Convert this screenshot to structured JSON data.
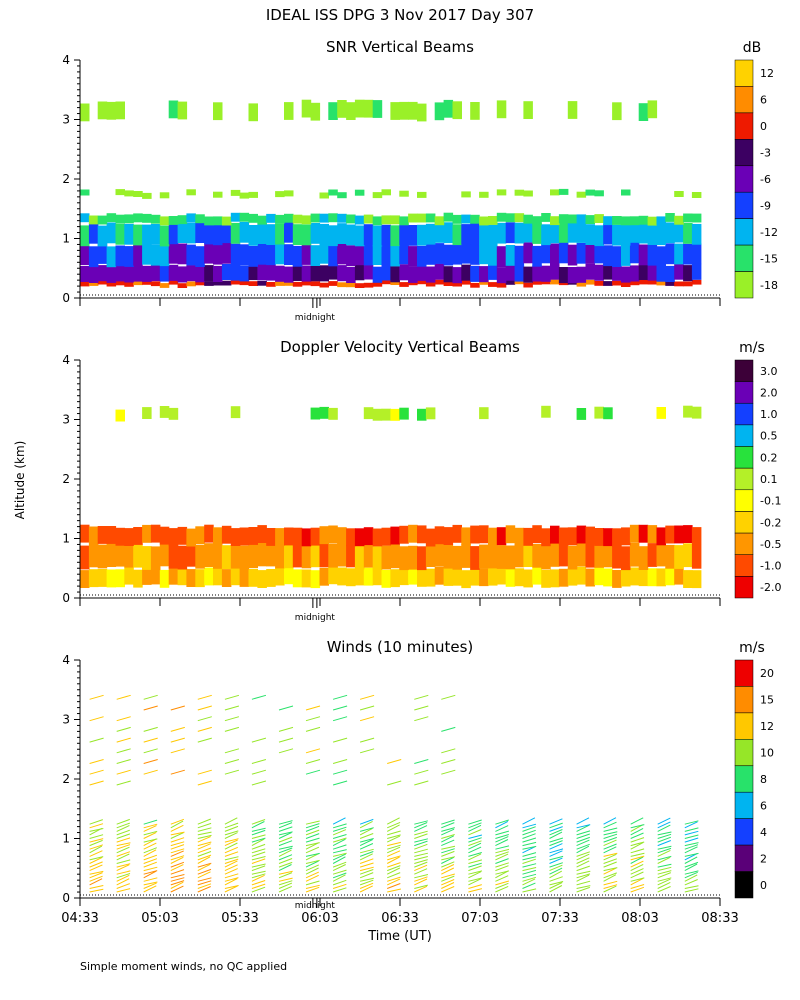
{
  "header": {
    "title": "IDEAL ISS DPG    3 Nov 2017 Day 307",
    "footnote": "Simple moment winds, no QC applied",
    "ylabel": "Altitude (km)"
  },
  "chart_data": [
    {
      "type": "heatmap",
      "title": "SNR Vertical Beams",
      "yticks": [
        "0",
        "1",
        "2",
        "3",
        "4"
      ],
      "ylim": [
        0,
        4
      ],
      "marker": "midnight",
      "colorbar": {
        "unit": "dB",
        "labels": [
          "12",
          "6",
          "0",
          "-3",
          "-6",
          "-9",
          "-12",
          "-15",
          "-18"
        ],
        "colors": [
          "#ffd200",
          "#ff8c00",
          "#ee1a00",
          "#3c0062",
          "#6a00b6",
          "#1440ff",
          "#00b4f0",
          "#28e26a",
          "#9af028"
        ]
      },
      "bands": [
        {
          "lo": 0.2,
          "hi": 0.28,
          "value": 0
        },
        {
          "lo": 0.28,
          "hi": 0.55,
          "value": -6
        },
        {
          "lo": 0.55,
          "hi": 0.9,
          "value": -9
        },
        {
          "lo": 0.9,
          "hi": 1.25,
          "value": -12
        },
        {
          "lo": 1.25,
          "hi": 1.4,
          "value": -15
        },
        {
          "lo": 1.7,
          "hi": 1.8,
          "value": -18
        },
        {
          "lo": 3.0,
          "hi": 3.3,
          "value": -18
        }
      ]
    },
    {
      "type": "heatmap",
      "title": "Doppler Velocity Vertical Beams",
      "yticks": [
        "0",
        "1",
        "2",
        "3",
        "4"
      ],
      "ylim": [
        0,
        4
      ],
      "marker": "midnight",
      "colorbar": {
        "unit": "m/s",
        "labels": [
          "3.0",
          "2.0",
          "1.0",
          "0.5",
          "0.2",
          "0.1",
          "-0.1",
          "-0.2",
          "-0.5",
          "-1.0",
          "-2.0"
        ],
        "colors": [
          "#3c0038",
          "#6a00b6",
          "#1440ff",
          "#00b4f0",
          "#28e23c",
          "#b4f028",
          "#ffff00",
          "#ffd200",
          "#ff9600",
          "#ff4a00",
          "#ee0000"
        ]
      },
      "bands": [
        {
          "lo": 0.2,
          "hi": 0.5,
          "value": -0.2
        },
        {
          "lo": 0.5,
          "hi": 0.9,
          "value": -0.5
        },
        {
          "lo": 0.9,
          "hi": 1.2,
          "value": -1.0
        },
        {
          "lo": 3.0,
          "hi": 3.2,
          "value": 0.1
        }
      ]
    },
    {
      "type": "barbs",
      "title": "Winds (10 minutes)",
      "yticks": [
        "0",
        "1",
        "2",
        "3",
        "4"
      ],
      "ylim": [
        0,
        4
      ],
      "marker": "midnight",
      "xticks": [
        "04:33",
        "05:03",
        "05:33",
        "06:03",
        "06:33",
        "07:03",
        "07:33",
        "08:03",
        "08:33"
      ],
      "xlabel": "Time (UT)",
      "colorbar": {
        "unit": "m/s",
        "labels": [
          "20",
          "15",
          "12",
          "10",
          "8",
          "6",
          "4",
          "2",
          "0"
        ],
        "colors": [
          "#ee0000",
          "#ff8c00",
          "#ffc800",
          "#96e628",
          "#28e26a",
          "#00b4f0",
          "#1440ff",
          "#5a0078",
          "#000000"
        ]
      },
      "columns_utc": [
        "04:38",
        "04:48",
        "04:58",
        "05:08",
        "05:18",
        "05:28",
        "05:38",
        "05:48",
        "05:58",
        "06:08",
        "06:18",
        "06:28",
        "06:38",
        "06:48",
        "06:58",
        "07:08",
        "07:18",
        "07:28",
        "07:38",
        "07:48",
        "07:58",
        "08:08",
        "08:18"
      ],
      "speed_ms": [
        14,
        13,
        14,
        15,
        14,
        13,
        12,
        11,
        12,
        11,
        12,
        13,
        12,
        12,
        11,
        11,
        10,
        10,
        11,
        12,
        12,
        11,
        10
      ]
    }
  ]
}
